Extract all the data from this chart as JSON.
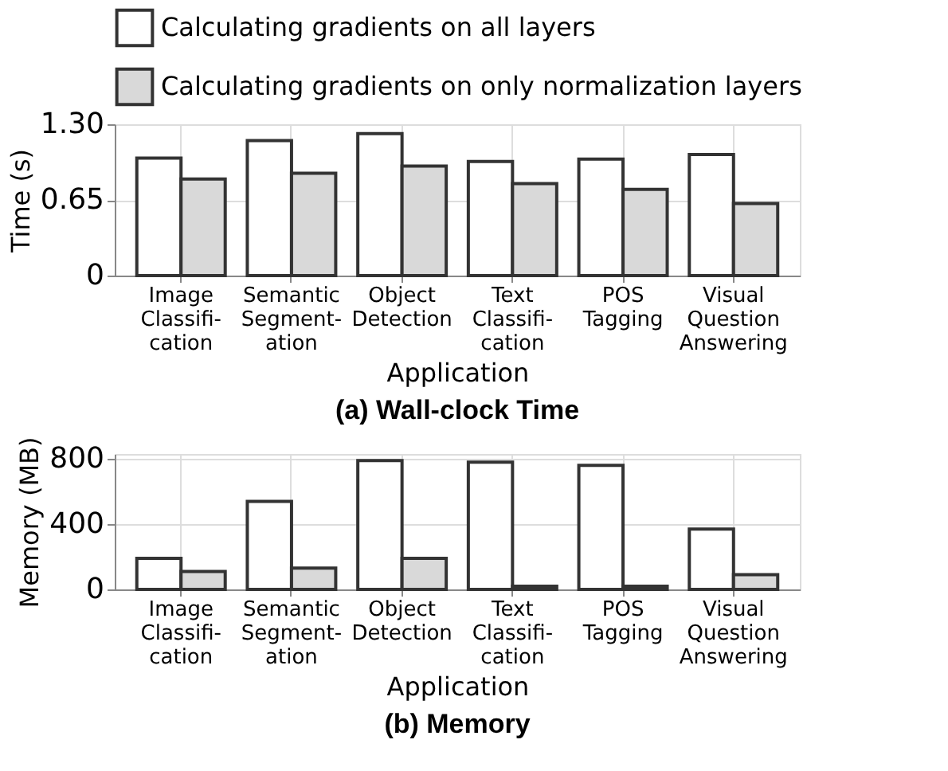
{
  "chart_data": [
    {
      "type": "bar",
      "title": "(a) Wall-clock Time",
      "xlabel": "Application",
      "ylabel": "Time (s)",
      "categories": [
        "Image\nClassifi-\ncation",
        "Semantic\nSegment-\nation",
        "Object\nDetection",
        "Text\nClassifi-\ncation",
        "POS\nTagging",
        "Visual\nQuestion\nAnswering"
      ],
      "series": [
        {
          "name": "Calculating gradients on all layers",
          "color": "#ffffff",
          "values": [
            1.01,
            1.16,
            1.22,
            0.98,
            1.0,
            1.04
          ]
        },
        {
          "name": "Calculating gradients on only normalization layers",
          "color": "#d9d9d9",
          "values": [
            0.83,
            0.88,
            0.94,
            0.79,
            0.74,
            0.62
          ]
        }
      ],
      "ylim": [
        0,
        1.3
      ],
      "yticks": [
        0,
        {
          "value": 0.65,
          "label": "0.65"
        },
        {
          "value": 1.3,
          "label": "1.30"
        }
      ],
      "grid": true,
      "legend": "top"
    },
    {
      "type": "bar",
      "title": "(b) Memory",
      "xlabel": "Application",
      "ylabel": "Memory (MB)",
      "categories": [
        "Image\nClassifi-\ncation",
        "Semantic\nSegment-\nation",
        "Object\nDetection",
        "Text\nClassifi-\ncation",
        "POS\nTagging",
        "Visual\nQuestion\nAnswering"
      ],
      "series": [
        {
          "color": "#ffffff",
          "values": [
            190,
            540,
            790,
            780,
            760,
            370
          ]
        },
        {
          "color": "#d9d9d9",
          "values": [
            110,
            130,
            190,
            20,
            20,
            90
          ]
        }
      ],
      "ylim": [
        0,
        830
      ],
      "yticks": [
        0,
        400,
        800
      ],
      "grid": true,
      "legend": false
    }
  ]
}
